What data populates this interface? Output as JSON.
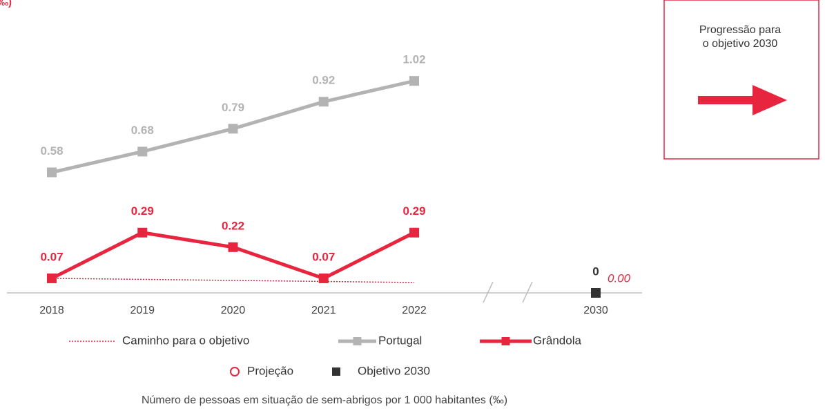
{
  "chart_data": {
    "type": "line",
    "y_unit": "(‰)",
    "categories": [
      "2018",
      "2019",
      "2020",
      "2021",
      "2022",
      "2030"
    ],
    "ylim": [
      0,
      1.2
    ],
    "series": [
      {
        "name": "Caminho para o objetivo",
        "color": "#e8253f",
        "marker": "none",
        "dash": "dotted",
        "show_labels": false,
        "values": [
          0.07,
          0.065,
          0.06,
          0.055,
          0.05,
          null
        ]
      },
      {
        "name": "Portugal",
        "color": "#b3b3b3",
        "marker": "square",
        "dash": "solid",
        "show_labels": true,
        "values": [
          0.58,
          0.68,
          0.79,
          0.92,
          1.02,
          null
        ]
      },
      {
        "name": "Grândola",
        "color": "#e8253f",
        "marker": "square",
        "dash": "solid",
        "show_labels": true,
        "values": [
          0.07,
          0.29,
          0.22,
          0.07,
          0.29,
          null
        ]
      },
      {
        "name": "Projeção",
        "color": "#e8253f",
        "marker": "circle-open",
        "dash": "none",
        "show_labels": true,
        "label_side": "right",
        "values": [
          null,
          null,
          null,
          null,
          null,
          0
        ],
        "value_labels": [
          null,
          null,
          null,
          null,
          null,
          "0.00"
        ]
      },
      {
        "name": "Objetivo 2030",
        "color": "#333333",
        "marker": "square",
        "dash": "none",
        "show_labels": true,
        "values": [
          null,
          null,
          null,
          null,
          null,
          0
        ]
      }
    ],
    "x_axis_caption": "Número de pessoas em situação de sem-abrigos por 1 000 habitantes (‰)",
    "progress_box": {
      "lines": [
        "Progressão para",
        "o objetivo 2030"
      ],
      "arrow_color": "#e8253f"
    }
  }
}
